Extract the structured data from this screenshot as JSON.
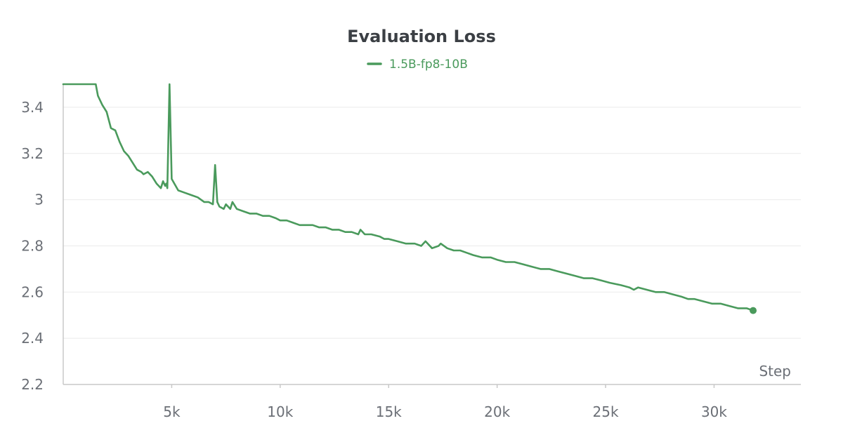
{
  "chart_data": {
    "type": "line",
    "title": "Evaluation Loss",
    "xlabel": "Step",
    "ylabel": "",
    "xlim": [
      0,
      34000
    ],
    "ylim": [
      2.2,
      3.5
    ],
    "xticks": [
      5000,
      10000,
      15000,
      20000,
      25000,
      30000
    ],
    "xtick_labels": [
      "5k",
      "10k",
      "15k",
      "20k",
      "25k",
      "30k"
    ],
    "yticks": [
      2.2,
      2.4,
      2.6,
      2.8,
      3.0,
      3.2,
      3.4
    ],
    "ytick_labels": [
      "2.2",
      "2.4",
      "2.6",
      "2.8",
      "3",
      "3.2",
      "3.4"
    ],
    "grid": true,
    "legend": "top-center",
    "series": [
      {
        "name": "1.5B-fp8-10B",
        "color": "#4a9a5c",
        "x": [
          0,
          1000,
          1100,
          1300,
          1500,
          1600,
          1800,
          2000,
          2200,
          2400,
          2600,
          2800,
          3000,
          3200,
          3400,
          3600,
          3700,
          3900,
          4100,
          4300,
          4400,
          4500,
          4600,
          4700,
          4750,
          4800,
          4900,
          5000,
          5300,
          5600,
          5900,
          6200,
          6500,
          6700,
          6900,
          7000,
          7100,
          7200,
          7400,
          7500,
          7700,
          7800,
          8000,
          8300,
          8600,
          8900,
          9200,
          9500,
          9800,
          10000,
          10300,
          10600,
          10900,
          11200,
          11500,
          11800,
          12100,
          12400,
          12700,
          13000,
          13300,
          13600,
          13700,
          13900,
          14200,
          14600,
          14800,
          15000,
          15400,
          15800,
          16200,
          16500,
          16700,
          17000,
          17300,
          17400,
          17700,
          18000,
          18300,
          18600,
          18900,
          19300,
          19700,
          20000,
          20400,
          20800,
          21200,
          21600,
          22000,
          22400,
          22800,
          23200,
          23600,
          24000,
          24400,
          24800,
          25200,
          25700,
          26100,
          26300,
          26500,
          26900,
          27300,
          27700,
          28100,
          28500,
          28800,
          28900,
          29100,
          29500,
          29900,
          30300,
          30700,
          31100,
          31500,
          31800
        ],
        "y": [
          3.5,
          3.5,
          3.5,
          3.5,
          3.5,
          3.45,
          3.41,
          3.38,
          3.31,
          3.3,
          3.25,
          3.21,
          3.19,
          3.16,
          3.13,
          3.12,
          3.11,
          3.12,
          3.1,
          3.07,
          3.06,
          3.05,
          3.08,
          3.06,
          3.07,
          3.05,
          3.5,
          3.09,
          3.04,
          3.03,
          3.02,
          3.01,
          2.99,
          2.99,
          2.98,
          3.15,
          2.99,
          2.97,
          2.96,
          2.98,
          2.96,
          2.99,
          2.96,
          2.95,
          2.94,
          2.94,
          2.93,
          2.93,
          2.92,
          2.91,
          2.91,
          2.9,
          2.89,
          2.89,
          2.89,
          2.88,
          2.88,
          2.87,
          2.87,
          2.86,
          2.86,
          2.85,
          2.87,
          2.85,
          2.85,
          2.84,
          2.83,
          2.83,
          2.82,
          2.81,
          2.81,
          2.8,
          2.82,
          2.79,
          2.8,
          2.81,
          2.79,
          2.78,
          2.78,
          2.77,
          2.76,
          2.75,
          2.75,
          2.74,
          2.73,
          2.73,
          2.72,
          2.71,
          2.7,
          2.7,
          2.69,
          2.68,
          2.67,
          2.66,
          2.66,
          2.65,
          2.64,
          2.63,
          2.62,
          2.61,
          2.62,
          2.61,
          2.6,
          2.6,
          2.59,
          2.58,
          2.57,
          2.57,
          2.57,
          2.56,
          2.55,
          2.55,
          2.54,
          2.53,
          2.53,
          2.52
        ]
      }
    ]
  }
}
